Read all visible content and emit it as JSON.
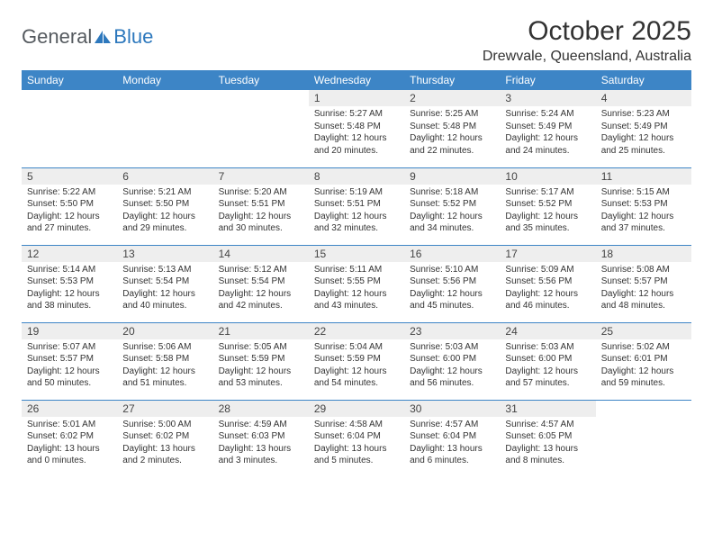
{
  "brand": {
    "part1": "General",
    "part2": "Blue"
  },
  "title": "October 2025",
  "location": "Drewvale, Queensland, Australia",
  "colors": {
    "header_bg": "#3d85c6",
    "header_text": "#ffffff",
    "daynum_bg": "#eeeeee",
    "border": "#3d85c6",
    "brand_gray": "#555a5f",
    "brand_blue": "#2d78bd",
    "text": "#333333"
  },
  "weekdays": [
    "Sunday",
    "Monday",
    "Tuesday",
    "Wednesday",
    "Thursday",
    "Friday",
    "Saturday"
  ],
  "weeks": [
    [
      null,
      null,
      null,
      {
        "d": "1",
        "sr": "5:27 AM",
        "ss": "5:48 PM",
        "dl": "12 hours and 20 minutes."
      },
      {
        "d": "2",
        "sr": "5:25 AM",
        "ss": "5:48 PM",
        "dl": "12 hours and 22 minutes."
      },
      {
        "d": "3",
        "sr": "5:24 AM",
        "ss": "5:49 PM",
        "dl": "12 hours and 24 minutes."
      },
      {
        "d": "4",
        "sr": "5:23 AM",
        "ss": "5:49 PM",
        "dl": "12 hours and 25 minutes."
      }
    ],
    [
      {
        "d": "5",
        "sr": "5:22 AM",
        "ss": "5:50 PM",
        "dl": "12 hours and 27 minutes."
      },
      {
        "d": "6",
        "sr": "5:21 AM",
        "ss": "5:50 PM",
        "dl": "12 hours and 29 minutes."
      },
      {
        "d": "7",
        "sr": "5:20 AM",
        "ss": "5:51 PM",
        "dl": "12 hours and 30 minutes."
      },
      {
        "d": "8",
        "sr": "5:19 AM",
        "ss": "5:51 PM",
        "dl": "12 hours and 32 minutes."
      },
      {
        "d": "9",
        "sr": "5:18 AM",
        "ss": "5:52 PM",
        "dl": "12 hours and 34 minutes."
      },
      {
        "d": "10",
        "sr": "5:17 AM",
        "ss": "5:52 PM",
        "dl": "12 hours and 35 minutes."
      },
      {
        "d": "11",
        "sr": "5:15 AM",
        "ss": "5:53 PM",
        "dl": "12 hours and 37 minutes."
      }
    ],
    [
      {
        "d": "12",
        "sr": "5:14 AM",
        "ss": "5:53 PM",
        "dl": "12 hours and 38 minutes."
      },
      {
        "d": "13",
        "sr": "5:13 AM",
        "ss": "5:54 PM",
        "dl": "12 hours and 40 minutes."
      },
      {
        "d": "14",
        "sr": "5:12 AM",
        "ss": "5:54 PM",
        "dl": "12 hours and 42 minutes."
      },
      {
        "d": "15",
        "sr": "5:11 AM",
        "ss": "5:55 PM",
        "dl": "12 hours and 43 minutes."
      },
      {
        "d": "16",
        "sr": "5:10 AM",
        "ss": "5:56 PM",
        "dl": "12 hours and 45 minutes."
      },
      {
        "d": "17",
        "sr": "5:09 AM",
        "ss": "5:56 PM",
        "dl": "12 hours and 46 minutes."
      },
      {
        "d": "18",
        "sr": "5:08 AM",
        "ss": "5:57 PM",
        "dl": "12 hours and 48 minutes."
      }
    ],
    [
      {
        "d": "19",
        "sr": "5:07 AM",
        "ss": "5:57 PM",
        "dl": "12 hours and 50 minutes."
      },
      {
        "d": "20",
        "sr": "5:06 AM",
        "ss": "5:58 PM",
        "dl": "12 hours and 51 minutes."
      },
      {
        "d": "21",
        "sr": "5:05 AM",
        "ss": "5:59 PM",
        "dl": "12 hours and 53 minutes."
      },
      {
        "d": "22",
        "sr": "5:04 AM",
        "ss": "5:59 PM",
        "dl": "12 hours and 54 minutes."
      },
      {
        "d": "23",
        "sr": "5:03 AM",
        "ss": "6:00 PM",
        "dl": "12 hours and 56 minutes."
      },
      {
        "d": "24",
        "sr": "5:03 AM",
        "ss": "6:00 PM",
        "dl": "12 hours and 57 minutes."
      },
      {
        "d": "25",
        "sr": "5:02 AM",
        "ss": "6:01 PM",
        "dl": "12 hours and 59 minutes."
      }
    ],
    [
      {
        "d": "26",
        "sr": "5:01 AM",
        "ss": "6:02 PM",
        "dl": "13 hours and 0 minutes."
      },
      {
        "d": "27",
        "sr": "5:00 AM",
        "ss": "6:02 PM",
        "dl": "13 hours and 2 minutes."
      },
      {
        "d": "28",
        "sr": "4:59 AM",
        "ss": "6:03 PM",
        "dl": "13 hours and 3 minutes."
      },
      {
        "d": "29",
        "sr": "4:58 AM",
        "ss": "6:04 PM",
        "dl": "13 hours and 5 minutes."
      },
      {
        "d": "30",
        "sr": "4:57 AM",
        "ss": "6:04 PM",
        "dl": "13 hours and 6 minutes."
      },
      {
        "d": "31",
        "sr": "4:57 AM",
        "ss": "6:05 PM",
        "dl": "13 hours and 8 minutes."
      },
      null
    ]
  ],
  "labels": {
    "sunrise": "Sunrise:",
    "sunset": "Sunset:",
    "daylight": "Daylight:"
  }
}
